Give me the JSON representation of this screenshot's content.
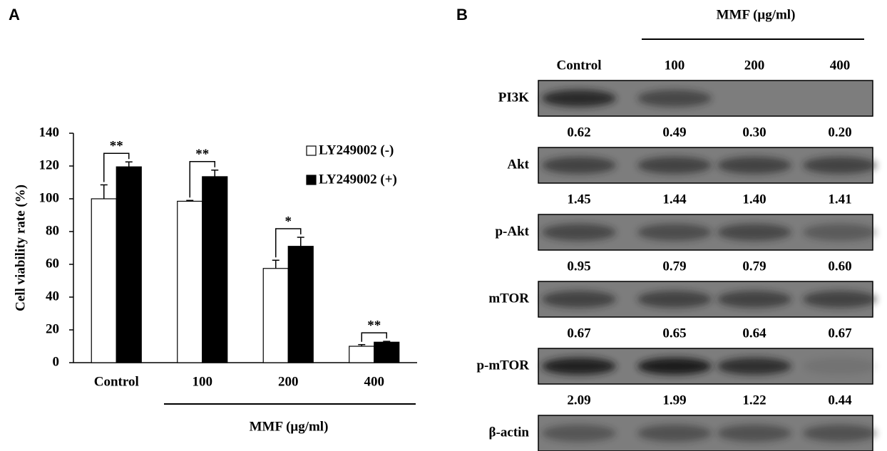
{
  "panel_labels": [
    "A",
    "B"
  ],
  "chart_data": {
    "type": "bar",
    "y_label": "Cell viability rate (%)",
    "x_group_label": "MMF (μg/ml)",
    "categories": [
      "Control",
      "100",
      "200",
      "400"
    ],
    "series": [
      {
        "name": "LY249002 (-)",
        "color": "#ffffff",
        "values": [
          100,
          98.5,
          57.5,
          10
        ],
        "errors": [
          8.5,
          0.5,
          5,
          1
        ]
      },
      {
        "name": "LY249002 (+)",
        "color": "#000000",
        "values": [
          119.5,
          113.5,
          71,
          12.5
        ],
        "errors": [
          3,
          4,
          5.5,
          0.5
        ]
      }
    ],
    "significance": [
      "**",
      "**",
      "*",
      "**"
    ],
    "ylim": [
      0,
      140
    ],
    "yticks": [
      0,
      20,
      40,
      60,
      80,
      100,
      120,
      140
    ],
    "legend": "upper right",
    "grid": false
  },
  "blot": {
    "header": "MMF (μg/ml)",
    "columns": [
      "Control",
      "100",
      "200",
      "400"
    ],
    "rows": [
      {
        "label": "PI3K",
        "ratios": [
          "0.62",
          "0.49",
          "0.30",
          "0.20"
        ]
      },
      {
        "label": "Akt",
        "ratios": [
          "1.45",
          "1.44",
          "1.40",
          "1.41"
        ]
      },
      {
        "label": "p-Akt",
        "ratios": [
          "0.95",
          "0.79",
          "0.79",
          "0.60"
        ]
      },
      {
        "label": "mTOR",
        "ratios": [
          "0.67",
          "0.65",
          "0.64",
          "0.67"
        ]
      },
      {
        "label": "p-mTOR",
        "ratios": [
          "2.09",
          "1.99",
          "1.22",
          "0.44"
        ]
      },
      {
        "label": "β-actin"
      }
    ]
  }
}
